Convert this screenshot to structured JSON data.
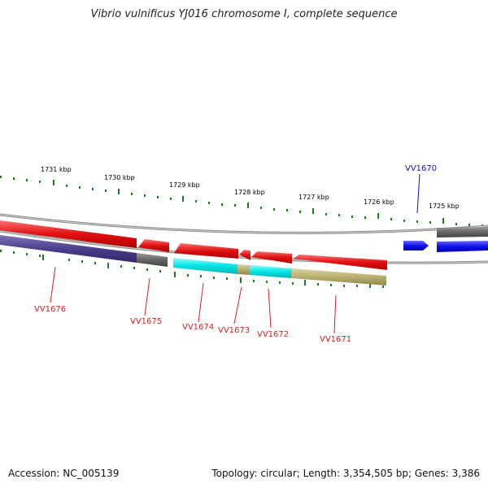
{
  "title": "Vibrio vulnificus YJ016 chromosome I, complete sequence",
  "footer": {
    "accession": "Accession: NC_005139",
    "topology": "Topology: circular; Length: 3,354,505 bp; Genes: 3,386"
  },
  "ruler": {
    "labels": [
      "1731 kbp",
      "1730 kbp",
      "1729 kbp",
      "1728 kbp",
      "1727 kbp",
      "1726 kbp",
      "1725 kbp"
    ]
  },
  "genes": [
    {
      "id": "VV1676",
      "color": "#d81e1e"
    },
    {
      "id": "VV1675",
      "color": "#d81e1e"
    },
    {
      "id": "VV1674",
      "color": "#d81e1e"
    },
    {
      "id": "VV1673",
      "color": "#d81e1e"
    },
    {
      "id": "VV1672",
      "color": "#d81e1e"
    },
    {
      "id": "VV1671",
      "color": "#d81e1e"
    },
    {
      "id": "VV1670",
      "color": "#1010cc"
    }
  ],
  "colors": {
    "tick": "#1f7a1f",
    "backbone": "#8a8a8a",
    "forward_gene": "#1010ee",
    "reverse_gene": "#e01010",
    "category_purple": "#4a3f8a",
    "category_gray": "#666666",
    "category_cyan": "#00e5e5",
    "category_olive": "#b8b070"
  }
}
